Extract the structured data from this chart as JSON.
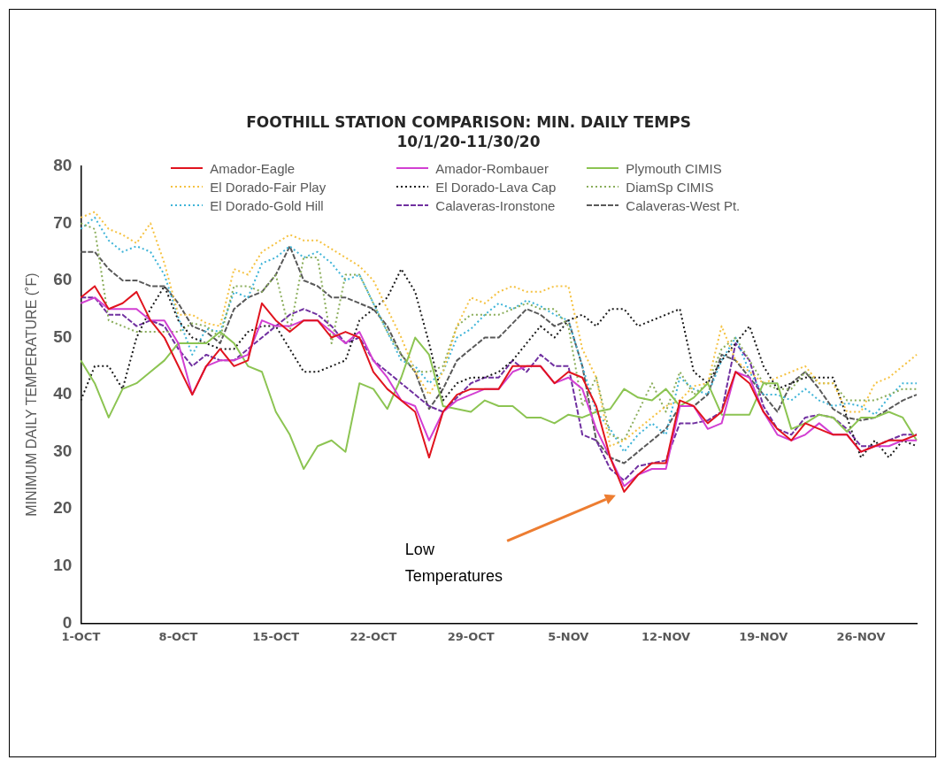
{
  "chart_data": {
    "type": "line",
    "title": "FOOTHILL STATION COMPARISON: MIN. DAILY TEMPS",
    "subtitle": "10/1/20-11/30/20",
    "ylabel": "MINIMUM DAILY TEMPERATURE (˚F)",
    "categories": [
      "1-OCT",
      null,
      null,
      null,
      null,
      null,
      null,
      "8-OCT",
      null,
      null,
      null,
      null,
      null,
      null,
      "15-OCT",
      null,
      null,
      null,
      null,
      null,
      null,
      "22-OCT",
      null,
      null,
      null,
      null,
      null,
      null,
      "29-OCT",
      null,
      null,
      null,
      null,
      null,
      null,
      "5-NOV",
      null,
      null,
      null,
      null,
      null,
      null,
      "12-NOV",
      null,
      null,
      null,
      null,
      null,
      null,
      "19-NOV",
      null,
      null,
      null,
      null,
      null,
      null,
      "26-NOV",
      null,
      null,
      null,
      null
    ],
    "ylim": [
      0,
      80
    ],
    "yticks": [
      0,
      10,
      20,
      30,
      40,
      50,
      60,
      70,
      80
    ],
    "grid": false,
    "legend": "top",
    "annotations": [
      "Low Temperatures"
    ],
    "series": [
      {
        "name": "Amador-Eagle",
        "color": "#e0141e",
        "line_style": "solid",
        "values": [
          57,
          59,
          55,
          56,
          58,
          53,
          50,
          45,
          40,
          45,
          48,
          45,
          46,
          56,
          53,
          51,
          53,
          53,
          50,
          51,
          50,
          44,
          41,
          39,
          37,
          29,
          37,
          40,
          41,
          41,
          41,
          45,
          45,
          45,
          42,
          44,
          43,
          38,
          29,
          23,
          26,
          28,
          28,
          39,
          38,
          35,
          37,
          44,
          42,
          37,
          34,
          32,
          35,
          34,
          33,
          33,
          30,
          31,
          32,
          32,
          33
        ]
      },
      {
        "name": "Amador-Rombauer",
        "color": "#d23fd2",
        "line_style": "solid",
        "values": [
          56,
          57,
          55,
          55,
          55,
          53,
          53,
          49,
          40,
          45,
          46,
          46,
          47,
          53,
          52,
          52,
          53,
          53,
          51,
          49,
          51,
          46,
          43,
          39,
          38,
          32,
          37,
          39,
          40,
          41,
          41,
          44,
          45,
          45,
          42,
          43,
          41,
          34,
          29,
          24,
          26,
          27,
          27,
          38,
          38,
          34,
          35,
          44,
          43,
          37,
          33,
          32,
          33,
          35,
          33,
          33,
          30,
          31,
          31,
          32,
          32
        ]
      },
      {
        "name": "Plymouth CIMIS",
        "color": "#8cc452",
        "line_style": "solid",
        "values": [
          46,
          42,
          36,
          41,
          42,
          44,
          46,
          49,
          49,
          49,
          51,
          49,
          45,
          44,
          37,
          33,
          27,
          31,
          32,
          30,
          42,
          41,
          37.5,
          43,
          50,
          47,
          38,
          37.5,
          37,
          39,
          38,
          38,
          36,
          36,
          35,
          36.5,
          36,
          37,
          37.5,
          41,
          39.5,
          39,
          41,
          38,
          39.5,
          42,
          36.5,
          36.5,
          36.5,
          42,
          42,
          34,
          35,
          36.5,
          36,
          33.5,
          36,
          36,
          37,
          36,
          32
        ]
      },
      {
        "name": "El Dorado-Fair Play",
        "color": "#f5c242",
        "line_style": "dotted",
        "values": [
          71,
          72,
          69,
          68,
          66.5,
          70,
          63,
          54,
          54,
          52.5,
          52,
          62,
          61,
          65,
          66.5,
          68,
          67,
          67,
          65.5,
          64,
          62.5,
          60,
          55,
          50,
          44,
          40,
          44,
          52,
          57,
          56,
          58,
          59,
          58,
          58,
          59,
          59,
          48,
          43,
          31,
          32,
          34,
          36,
          38,
          39,
          41.5,
          42,
          52,
          46,
          44,
          42,
          43,
          44,
          45,
          42,
          42,
          37,
          37,
          42,
          43,
          45,
          47
        ]
      },
      {
        "name": "El Dorado-Lava Cap",
        "color": "#1a1a1a",
        "line_style": "dotted",
        "values": [
          39,
          45,
          45,
          41,
          50,
          55,
          59,
          53,
          50,
          49,
          48,
          48,
          51,
          52,
          52,
          48,
          44,
          44,
          45,
          46,
          53,
          55,
          57,
          62,
          58,
          49,
          39,
          42,
          43,
          43,
          44,
          46,
          49,
          52,
          50,
          53,
          54,
          52,
          55,
          55,
          52,
          53,
          54,
          55,
          44,
          42,
          46,
          49,
          52,
          45,
          41,
          42,
          43,
          43,
          43,
          36,
          29,
          32,
          29,
          32,
          31
        ]
      },
      {
        "name": "DiamSp CIMIS",
        "color": "#8aad5a",
        "line_style": "dotted",
        "values": [
          70,
          69,
          53,
          52,
          51,
          51,
          51,
          51,
          52.5,
          52,
          50,
          59,
          59,
          58,
          61,
          51,
          64,
          64,
          49,
          61,
          61,
          56,
          51,
          47,
          44,
          44,
          45,
          52,
          54,
          54,
          54,
          55,
          56,
          55,
          55,
          52,
          38,
          43,
          33,
          32,
          37,
          42,
          37,
          44,
          40,
          42,
          48,
          50,
          46,
          42,
          41,
          41,
          44,
          42,
          42,
          39,
          39,
          39,
          40,
          41,
          41
        ]
      },
      {
        "name": "El Dorado-Gold Hill",
        "color": "#3fb4d8",
        "line_style": "dotted",
        "values": [
          69,
          71,
          67,
          65,
          66,
          65,
          61,
          53.5,
          47,
          51.5,
          51,
          58,
          57,
          63,
          64,
          66,
          64,
          65,
          63,
          60,
          61,
          56,
          51,
          46,
          45,
          42,
          44,
          50,
          51.5,
          54,
          56,
          55,
          56.5,
          55.5,
          54,
          53,
          45,
          37,
          34,
          30,
          33,
          35,
          33,
          43,
          41,
          40,
          46,
          50,
          44,
          40,
          40,
          39,
          41,
          39,
          38,
          38.5,
          38,
          36.5,
          39.5,
          42,
          42
        ]
      },
      {
        "name": "Calaveras-Ironstone",
        "color": "#7030a0",
        "line_style": "dashed",
        "values": [
          57,
          57,
          54,
          54,
          52,
          53,
          52,
          48,
          45,
          47,
          46,
          46,
          48,
          50,
          52,
          54,
          55,
          54,
          52,
          49,
          50,
          46,
          44,
          42,
          40,
          38,
          37,
          39.5,
          42,
          43,
          43,
          46,
          44,
          47,
          45,
          45,
          33,
          32,
          27,
          25,
          27.5,
          28,
          28.5,
          35,
          35,
          35.5,
          37,
          49,
          46,
          38,
          34,
          33,
          36,
          36.5,
          36,
          34,
          31,
          31,
          32,
          33,
          33
        ]
      },
      {
        "name": "Calaveras-West Pt.",
        "color": "#595959",
        "line_style": "dashed",
        "values": [
          65,
          65,
          62,
          60,
          60,
          59,
          59,
          56,
          52,
          51,
          49,
          55,
          57,
          58,
          61,
          66,
          60,
          59,
          57,
          57,
          56,
          55,
          52,
          47,
          44,
          37.5,
          41,
          46,
          48,
          50,
          50,
          52.5,
          55,
          54,
          52,
          53,
          45,
          32,
          29,
          28,
          30,
          32,
          34,
          38,
          38,
          40,
          47,
          46,
          43,
          40,
          37,
          42,
          44,
          41,
          37.5,
          36,
          35.5,
          36,
          37.5,
          39,
          40
        ]
      }
    ]
  }
}
